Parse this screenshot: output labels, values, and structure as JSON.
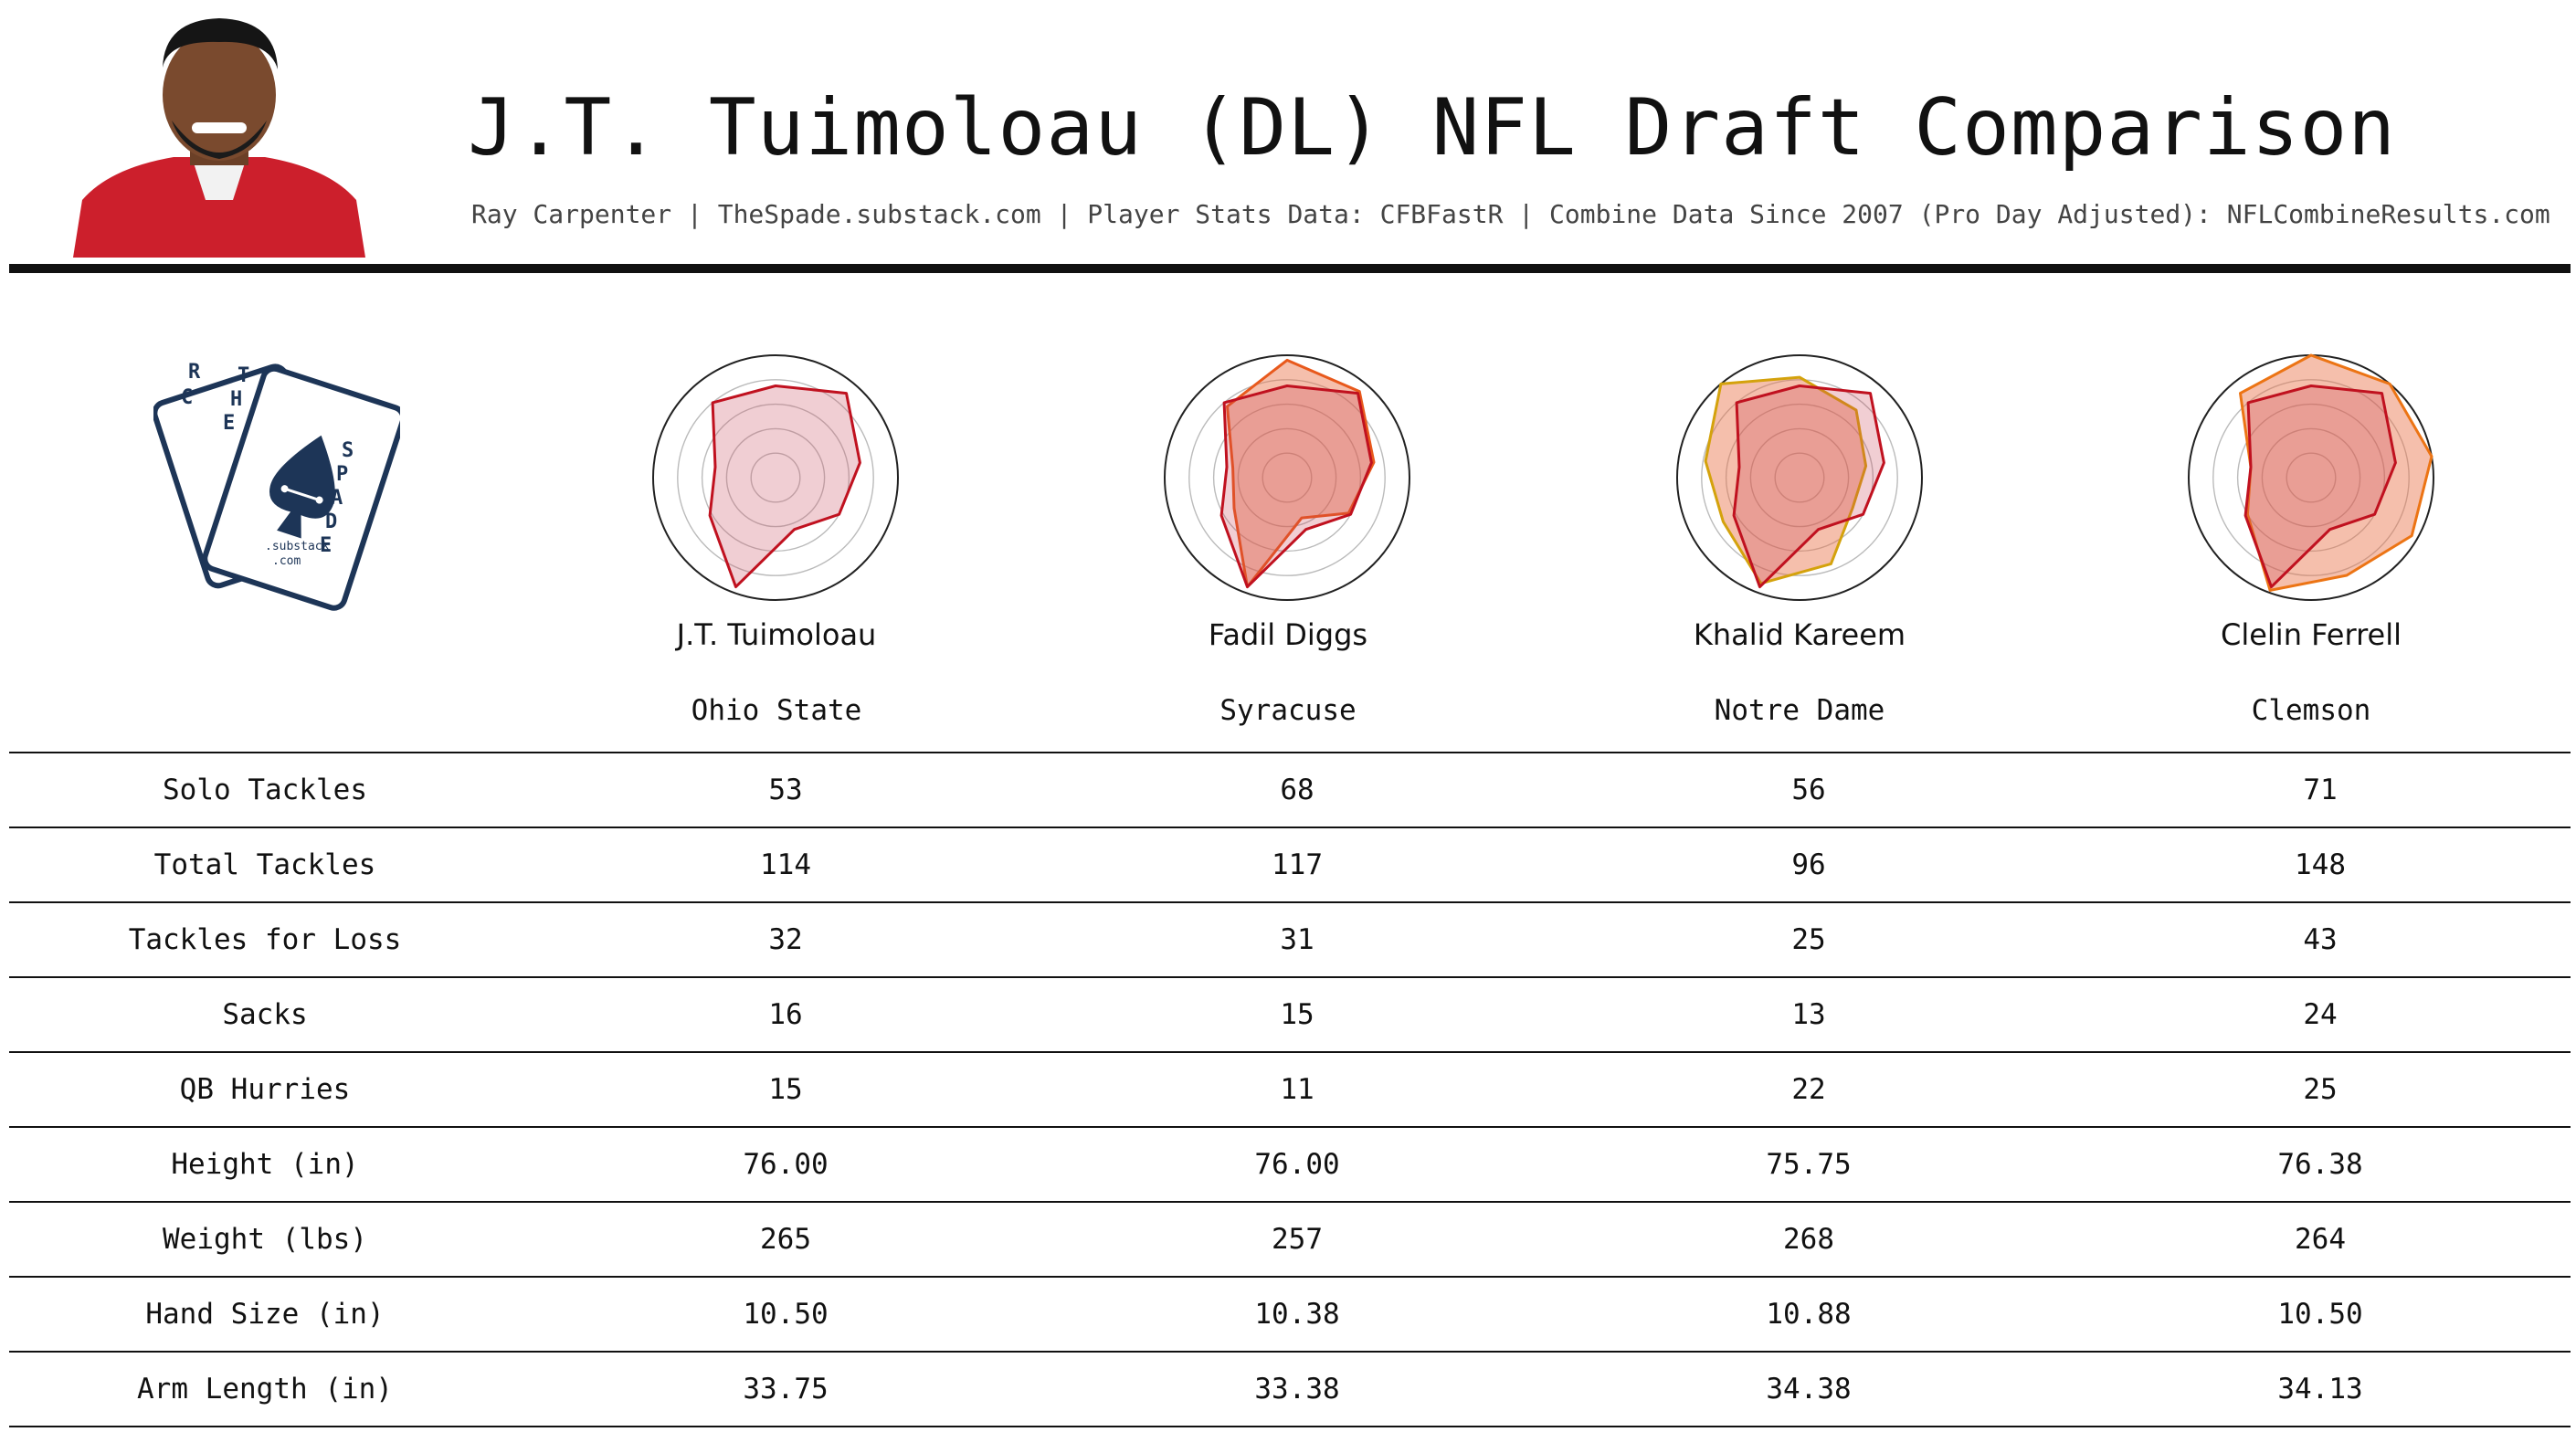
{
  "header": {
    "title": "J.T. Tuimoloau (DL) NFL Draft Comparison",
    "subtitle": "Ray Carpenter | TheSpade.substack.com | Player Stats Data: CFBFastR | Combine Data Since 2007 (Pro Day Adjusted): NFLCombineResults.com"
  },
  "logo": {
    "letters_left": [
      "R",
      "C"
    ],
    "letters_top": [
      "T",
      "H",
      "E"
    ],
    "letters_right": [
      "S",
      "P",
      "A",
      "D",
      "E"
    ],
    "substack": ".substack",
    "com": ".com"
  },
  "colors": {
    "primary": "#c0111f",
    "primary_fill": "rgba(205,92,110,0.30)",
    "comp1": "#e8591c",
    "comp2": "#d4a20c",
    "comp3": "#ec7414",
    "overlap_fill": "rgba(232,112,70,0.45)"
  },
  "players": [
    {
      "name": "J.T. Tuimoloau",
      "school": "Ohio State"
    },
    {
      "name": "Fadil Diggs",
      "school": "Syracuse"
    },
    {
      "name": "Khalid Kareem",
      "school": "Notre Dame"
    },
    {
      "name": "Clelin Ferrell",
      "school": "Clemson"
    }
  ],
  "stats": {
    "rows": [
      {
        "label": "Solo Tackles",
        "values": [
          "53",
          "68",
          "56",
          "71"
        ]
      },
      {
        "label": "Total Tackles",
        "values": [
          "114",
          "117",
          "96",
          "148"
        ]
      },
      {
        "label": "Tackles for Loss",
        "values": [
          "32",
          "31",
          "25",
          "43"
        ]
      },
      {
        "label": "Sacks",
        "values": [
          "16",
          "15",
          "13",
          "24"
        ]
      },
      {
        "label": "QB Hurries",
        "values": [
          "15",
          "11",
          "22",
          "25"
        ]
      },
      {
        "label": "Height (in)",
        "values": [
          "76.00",
          "76.00",
          "75.75",
          "76.38"
        ]
      },
      {
        "label": "Weight (lbs)",
        "values": [
          "265",
          "257",
          "268",
          "264"
        ]
      },
      {
        "label": "Hand Size (in)",
        "values": [
          "10.50",
          "10.38",
          "10.88",
          "10.50"
        ]
      },
      {
        "label": "Arm Length (in)",
        "values": [
          "33.75",
          "33.38",
          "34.38",
          "34.13"
        ]
      }
    ]
  },
  "chart_data": {
    "type": "radar",
    "rmax": 1.0,
    "rings": [
      0.2,
      0.4,
      0.6,
      0.8,
      1.0
    ],
    "axes_count": 9,
    "base_series": [
      0.75,
      0.9,
      0.7,
      0.6,
      0.45,
      0.95,
      0.62,
      0.5,
      0.8
    ],
    "panels": [
      {
        "comparison": null
      },
      {
        "comparison": [
          0.96,
          0.92,
          0.72,
          0.58,
          0.35,
          0.95,
          0.5,
          0.45,
          0.76
        ],
        "color": "comp1"
      },
      {
        "comparison": [
          0.82,
          0.72,
          0.55,
          0.5,
          0.75,
          0.92,
          0.72,
          0.78,
          1.0
        ],
        "color": "comp2"
      },
      {
        "comparison": [
          1.0,
          1.0,
          1.0,
          0.95,
          0.85,
          0.98,
          0.6,
          0.5,
          0.9
        ],
        "color": "comp3"
      }
    ]
  }
}
